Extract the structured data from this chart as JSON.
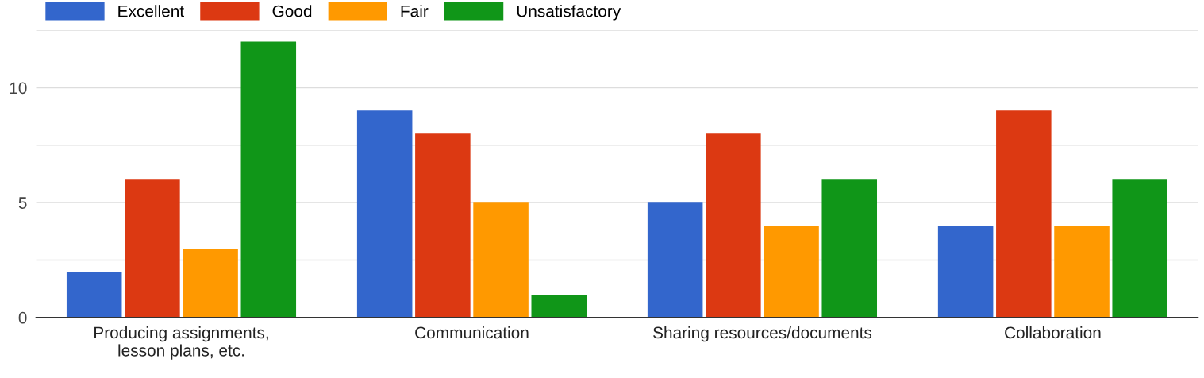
{
  "chart_data": {
    "type": "bar",
    "categories": [
      "Producing assignments,\nlesson plans, etc.",
      "Communication",
      "Sharing resources/documents",
      "Collaboration"
    ],
    "series": [
      {
        "name": "Excellent",
        "color": "#3366cc",
        "values": [
          2,
          9,
          5,
          4
        ]
      },
      {
        "name": "Good",
        "color": "#dc3912",
        "values": [
          6,
          8,
          8,
          9
        ]
      },
      {
        "name": "Fair",
        "color": "#ff9900",
        "values": [
          3,
          5,
          4,
          4
        ]
      },
      {
        "name": "Unsatisfactory",
        "color": "#109618",
        "values": [
          12,
          1,
          6,
          6
        ]
      }
    ],
    "ylim": [
      0,
      12.5
    ],
    "yticks": [
      0,
      {
        "value": 2.5,
        "label": null
      },
      5,
      {
        "value": 7.5,
        "label": null
      },
      10,
      {
        "value": 12.5,
        "label": null
      }
    ],
    "grid": "y",
    "legend": "top left"
  }
}
